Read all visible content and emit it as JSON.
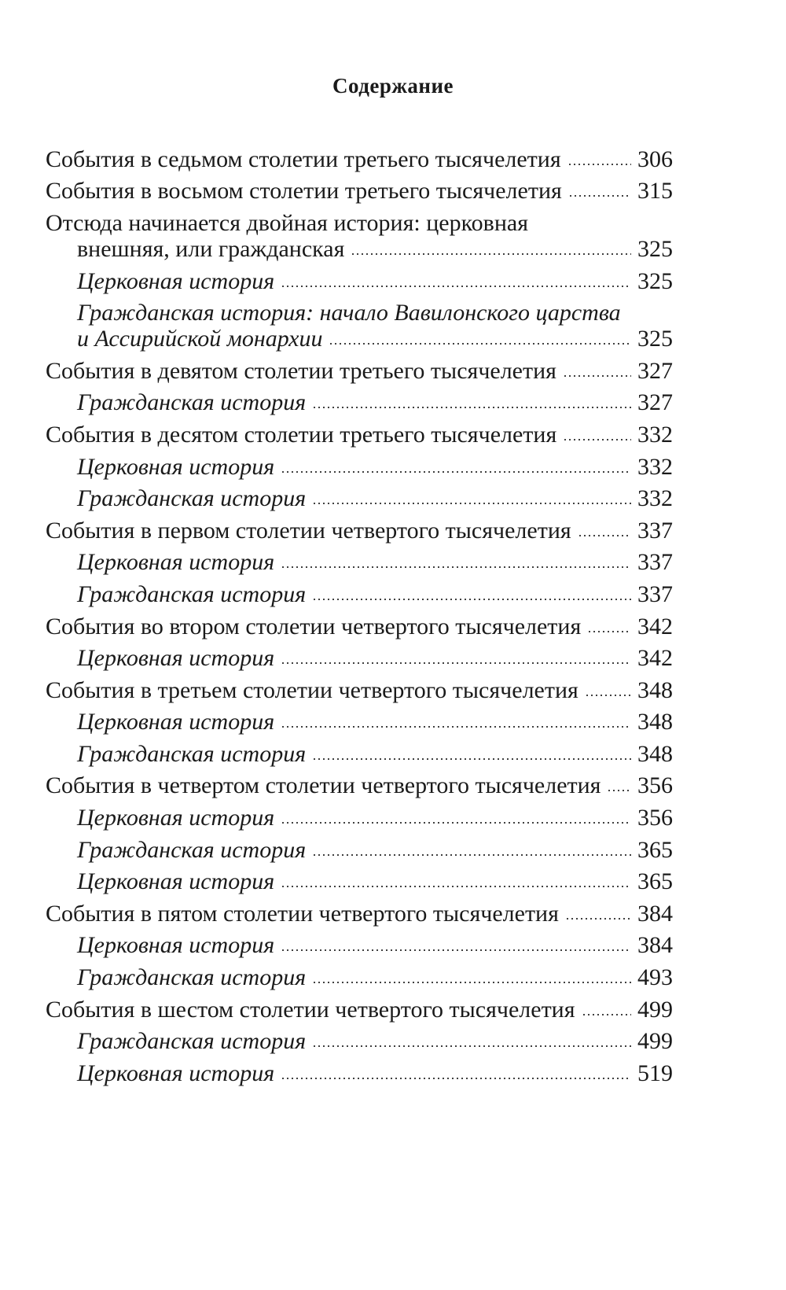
{
  "title": "Содержание",
  "entries": [
    {
      "lines": [
        "События в седьмом столетии третьего тысячелетия"
      ],
      "page": "306",
      "level": 1,
      "italic": false
    },
    {
      "lines": [
        "События в восьмом столетии третьего тысячелетия"
      ],
      "page": "315",
      "level": 1,
      "italic": false
    },
    {
      "lines": [
        "Отсюда начинается двойная история: церковная",
        "внешняя, или гражданская"
      ],
      "page": "325",
      "level": 1,
      "italic": false
    },
    {
      "lines": [
        "Церковная история"
      ],
      "page": "325",
      "level": 2,
      "italic": true
    },
    {
      "lines": [
        "Гражданская история: начало Вавилонского царства",
        "и Ассирийской монархии"
      ],
      "page": "325",
      "level": 2,
      "italic": true
    },
    {
      "lines": [
        "События в девятом столетии третьего тысячелетия"
      ],
      "page": "327",
      "level": 1,
      "italic": false
    },
    {
      "lines": [
        "Гражданская история"
      ],
      "page": "327",
      "level": 2,
      "italic": true
    },
    {
      "lines": [
        "События в десятом столетии третьего тысячелетия"
      ],
      "page": "332",
      "level": 1,
      "italic": false
    },
    {
      "lines": [
        "Церковная история"
      ],
      "page": "332",
      "level": 2,
      "italic": true
    },
    {
      "lines": [
        "Гражданская история"
      ],
      "page": "332",
      "level": 2,
      "italic": true
    },
    {
      "lines": [
        "События в первом столетии четвертого тысячелетия"
      ],
      "page": "337",
      "level": 1,
      "italic": false
    },
    {
      "lines": [
        "Церковная история"
      ],
      "page": "337",
      "level": 2,
      "italic": true
    },
    {
      "lines": [
        "Гражданская история"
      ],
      "page": "337",
      "level": 2,
      "italic": true
    },
    {
      "lines": [
        "События во втором столетии четвертого тысячелетия"
      ],
      "page": "342",
      "level": 1,
      "italic": false
    },
    {
      "lines": [
        "Церковная история"
      ],
      "page": "342",
      "level": 2,
      "italic": true
    },
    {
      "lines": [
        "События в третьем столетии четвертого тысячелетия"
      ],
      "page": "348",
      "level": 1,
      "italic": false
    },
    {
      "lines": [
        "Церковная история"
      ],
      "page": "348",
      "level": 2,
      "italic": true
    },
    {
      "lines": [
        "Гражданская история"
      ],
      "page": "348",
      "level": 2,
      "italic": true
    },
    {
      "lines": [
        "События в четвертом столетии четвертого тысячелетия"
      ],
      "page": "356",
      "level": 1,
      "italic": false
    },
    {
      "lines": [
        "Церковная история"
      ],
      "page": "356",
      "level": 2,
      "italic": true
    },
    {
      "lines": [
        "Гражданская история"
      ],
      "page": "365",
      "level": 2,
      "italic": true
    },
    {
      "lines": [
        "Церковная история"
      ],
      "page": "365",
      "level": 2,
      "italic": true
    },
    {
      "lines": [
        "События в пятом столетии четвертого тысячелетия"
      ],
      "page": "384",
      "level": 1,
      "italic": false
    },
    {
      "lines": [
        "Церковная история"
      ],
      "page": "384",
      "level": 2,
      "italic": true
    },
    {
      "lines": [
        "Гражданская история"
      ],
      "page": "493",
      "level": 2,
      "italic": true
    },
    {
      "lines": [
        "События в шестом столетии четвертого тысячелетия"
      ],
      "page": "499",
      "level": 1,
      "italic": false
    },
    {
      "lines": [
        "Гражданская история"
      ],
      "page": "499",
      "level": 2,
      "italic": true
    },
    {
      "lines": [
        "Церковная история"
      ],
      "page": "519",
      "level": 2,
      "italic": true
    }
  ]
}
